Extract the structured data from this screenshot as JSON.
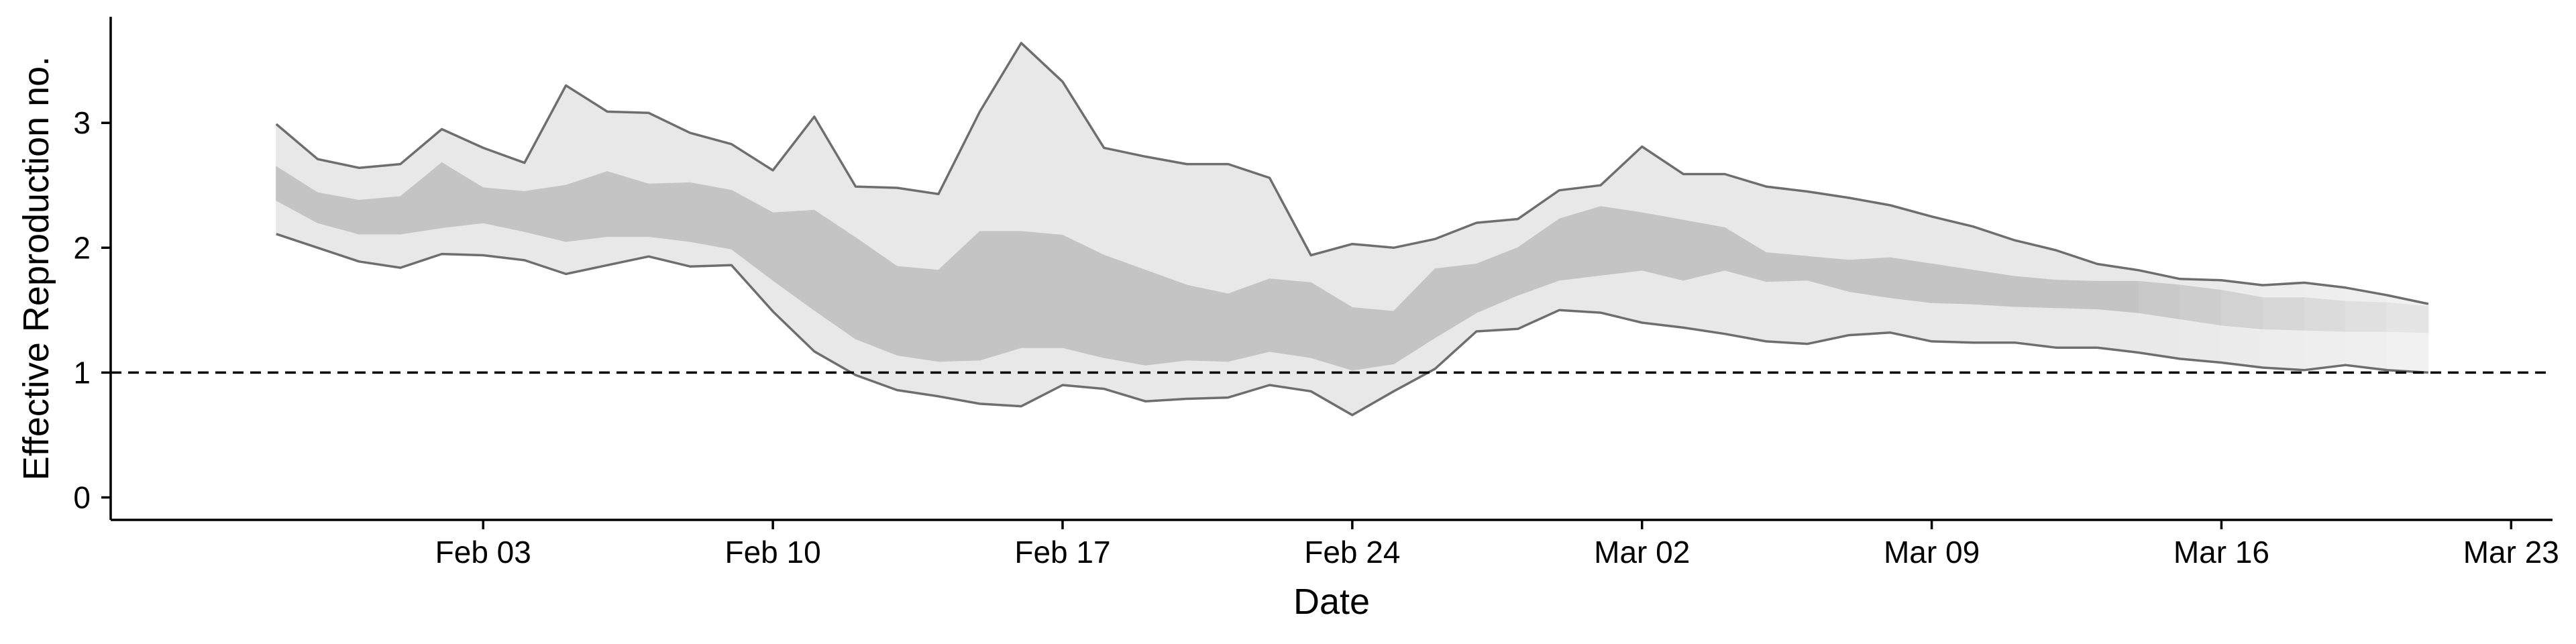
{
  "chart_data": {
    "type": "area",
    "title": "",
    "xlabel": "Date",
    "ylabel": "Effective Reproduction no.",
    "ylim": [
      -0.18,
      3.85
    ],
    "xlim": [
      "2020-01-25",
      "2020-03-24"
    ],
    "grid": false,
    "legend": "none",
    "reference_line": {
      "y": 1,
      "style": "dashed"
    },
    "x_ticks": [
      {
        "date": "2020-02-03",
        "label": "Feb 03"
      },
      {
        "date": "2020-02-10",
        "label": "Feb 10"
      },
      {
        "date": "2020-02-17",
        "label": "Feb 17"
      },
      {
        "date": "2020-02-24",
        "label": "Feb 24"
      },
      {
        "date": "2020-03-02",
        "label": "Mar 02"
      },
      {
        "date": "2020-03-09",
        "label": "Mar 09"
      },
      {
        "date": "2020-03-16",
        "label": "Mar 16"
      },
      {
        "date": "2020-03-23",
        "label": "Mar 23"
      }
    ],
    "y_ticks": [
      0,
      1,
      2,
      3
    ],
    "x": [
      "2020-01-29",
      "2020-01-30",
      "2020-01-31",
      "2020-02-01",
      "2020-02-02",
      "2020-02-03",
      "2020-02-04",
      "2020-02-05",
      "2020-02-06",
      "2020-02-07",
      "2020-02-08",
      "2020-02-09",
      "2020-02-10",
      "2020-02-11",
      "2020-02-12",
      "2020-02-13",
      "2020-02-14",
      "2020-02-15",
      "2020-02-16",
      "2020-02-17",
      "2020-02-18",
      "2020-02-19",
      "2020-02-20",
      "2020-02-21",
      "2020-02-22",
      "2020-02-23",
      "2020-02-24",
      "2020-02-25",
      "2020-02-26",
      "2020-02-27",
      "2020-02-28",
      "2020-02-29",
      "2020-03-01",
      "2020-03-02",
      "2020-03-03",
      "2020-03-04",
      "2020-03-05",
      "2020-03-06",
      "2020-03-07",
      "2020-03-08",
      "2020-03-09",
      "2020-03-10",
      "2020-03-11",
      "2020-03-12",
      "2020-03-13",
      "2020-03-14",
      "2020-03-15",
      "2020-03-16",
      "2020-03-17",
      "2020-03-18",
      "2020-03-19",
      "2020-03-20",
      "2020-03-21"
    ],
    "series": [
      {
        "type": "interval",
        "upper": [
          2.99,
          2.71,
          2.64,
          2.67,
          2.95,
          2.8,
          2.68,
          3.3,
          3.09,
          3.08,
          2.92,
          2.83,
          2.62,
          3.05,
          2.49,
          2.48,
          2.43,
          3.09,
          3.64,
          3.33,
          2.8,
          2.73,
          2.67,
          2.67,
          2.56,
          1.94,
          2.03,
          2.0,
          2.07,
          2.2,
          2.23,
          2.46,
          2.5,
          2.81,
          2.59,
          2.59,
          2.49,
          2.45,
          2.4,
          2.34,
          2.25,
          2.17,
          2.06,
          1.98,
          1.87,
          1.82,
          1.75,
          1.74,
          1.7,
          1.72,
          1.68,
          1.62,
          1.55
        ],
        "lower": [
          2.11,
          2.0,
          1.89,
          1.84,
          1.95,
          1.94,
          1.9,
          1.79,
          1.86,
          1.93,
          1.85,
          1.86,
          1.49,
          1.17,
          0.98,
          0.86,
          0.81,
          0.75,
          0.73,
          0.9,
          0.87,
          0.77,
          0.79,
          0.8,
          0.9,
          0.85,
          0.66,
          0.85,
          1.03,
          1.33,
          1.35,
          1.5,
          1.48,
          1.4,
          1.36,
          1.31,
          1.25,
          1.23,
          1.3,
          1.32,
          1.25,
          1.24,
          1.24,
          1.2,
          1.2,
          1.16,
          1.11,
          1.08,
          1.04,
          1.02,
          1.06,
          1.02,
          1.0
        ]
      },
      {
        "type": "interval",
        "upper": [
          2.65,
          2.44,
          2.38,
          2.41,
          2.68,
          2.48,
          2.45,
          2.5,
          2.61,
          2.51,
          2.52,
          2.46,
          2.28,
          2.3,
          2.08,
          1.85,
          1.82,
          2.13,
          2.13,
          2.1,
          1.94,
          1.82,
          1.7,
          1.63,
          1.75,
          1.72,
          1.52,
          1.49,
          1.83,
          1.87,
          2.0,
          2.23,
          2.33,
          2.28,
          2.22,
          2.16,
          1.96,
          1.93,
          1.9,
          1.92,
          1.87,
          1.82,
          1.77,
          1.74,
          1.73,
          1.73,
          1.7,
          1.66,
          1.6,
          1.6,
          1.57,
          1.56,
          1.53
        ],
        "lower": [
          2.38,
          2.2,
          2.11,
          2.11,
          2.16,
          2.2,
          2.13,
          2.05,
          2.09,
          2.09,
          2.05,
          1.99,
          1.74,
          1.5,
          1.27,
          1.14,
          1.09,
          1.1,
          1.2,
          1.2,
          1.12,
          1.06,
          1.1,
          1.09,
          1.17,
          1.12,
          1.02,
          1.07,
          1.28,
          1.48,
          1.62,
          1.74,
          1.78,
          1.82,
          1.74,
          1.82,
          1.73,
          1.74,
          1.65,
          1.6,
          1.56,
          1.55,
          1.53,
          1.52,
          1.51,
          1.48,
          1.43,
          1.38,
          1.35,
          1.34,
          1.33,
          1.33,
          1.32
        ]
      }
    ]
  }
}
